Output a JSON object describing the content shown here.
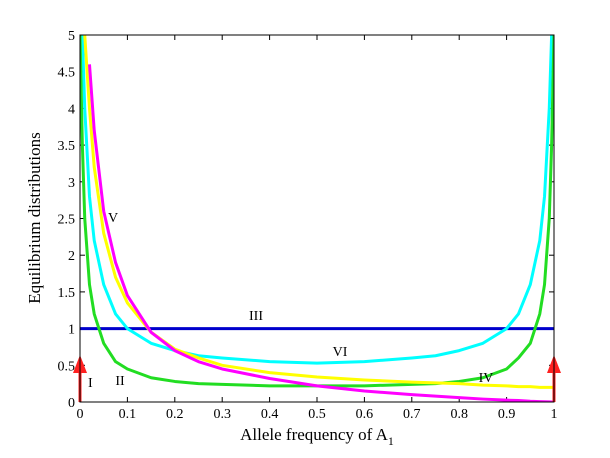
{
  "chart_data": {
    "type": "line",
    "xlabel": "Allele frequency of A",
    "xlabel_subscript": "1",
    "ylabel": "Equilibrium distributions",
    "x": [
      0,
      0.005,
      0.01,
      0.02,
      0.03,
      0.05,
      0.075,
      0.1,
      0.15,
      0.2,
      0.25,
      0.3,
      0.4,
      0.5,
      0.6,
      0.7,
      0.75,
      0.8,
      0.85,
      0.9,
      0.925,
      0.95,
      0.97,
      0.98,
      0.99,
      0.995,
      1
    ],
    "series": [
      {
        "name": "III",
        "color": "#0000cc",
        "values": [
          1,
          1,
          1,
          1,
          1,
          1,
          1,
          1,
          1,
          1,
          1,
          1,
          1,
          1,
          1,
          1,
          1,
          1,
          1,
          1,
          1,
          1,
          1,
          1,
          1,
          1,
          1
        ]
      },
      {
        "name": "VI",
        "color": "#00ffff",
        "values": [
          null,
          5,
          4.0,
          2.8,
          2.2,
          1.6,
          1.2,
          1.0,
          0.8,
          0.7,
          0.63,
          0.6,
          0.55,
          0.53,
          0.55,
          0.6,
          0.63,
          0.7,
          0.8,
          1.0,
          1.2,
          1.6,
          2.2,
          2.8,
          4.0,
          5,
          null
        ]
      },
      {
        "name": "II",
        "color": "#22dd22",
        "values": [
          5,
          3.5,
          2.5,
          1.6,
          1.2,
          0.8,
          0.55,
          0.45,
          0.33,
          0.28,
          0.25,
          0.24,
          0.22,
          0.22,
          0.22,
          0.24,
          0.25,
          0.28,
          0.33,
          0.45,
          0.6,
          0.8,
          1.2,
          1.6,
          2.5,
          3.5,
          5
        ]
      },
      {
        "name": "IV",
        "color": "#ffff00",
        "values": [
          null,
          null,
          5.0,
          4.0,
          3.2,
          2.3,
          1.7,
          1.35,
          0.95,
          0.72,
          0.6,
          0.5,
          0.4,
          0.34,
          0.3,
          0.27,
          0.26,
          0.25,
          0.23,
          0.22,
          0.21,
          0.21,
          0.2,
          0.2,
          0.2,
          0.2,
          0.2
        ]
      },
      {
        "name": "V",
        "color": "#ff00ff",
        "values": [
          null,
          null,
          null,
          4.6,
          3.7,
          2.6,
          1.9,
          1.45,
          0.95,
          0.7,
          0.55,
          0.45,
          0.32,
          0.22,
          0.15,
          0.1,
          0.08,
          0.06,
          0.04,
          0.025,
          0.02,
          0.01,
          0.005,
          0.003,
          0.001,
          0,
          0
        ]
      }
    ],
    "annotations": [
      "I"
    ],
    "xlim": [
      0,
      1
    ],
    "ylim": [
      0,
      5
    ],
    "xticks": [
      0,
      0.1,
      0.2,
      0.3,
      0.4,
      0.5,
      0.6,
      0.7,
      0.8,
      0.9,
      1
    ],
    "yticks": [
      0,
      0.5,
      1,
      1.5,
      2,
      2.5,
      3,
      3.5,
      4,
      4.5,
      5
    ]
  }
}
